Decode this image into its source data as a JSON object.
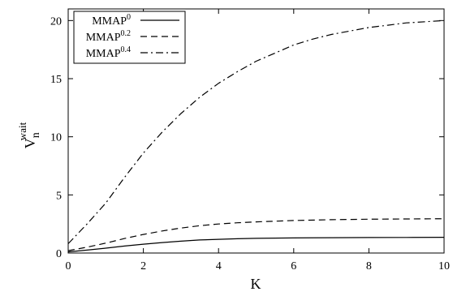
{
  "chart_data": {
    "type": "line",
    "xlabel": "K",
    "ylabel": {
      "base": "V",
      "sub": "n",
      "sup": "wait"
    },
    "xlim": [
      0,
      10
    ],
    "ylim": [
      0,
      21
    ],
    "xticks": [
      0,
      2,
      4,
      6,
      8,
      10
    ],
    "yticks": [
      0,
      5,
      10,
      15,
      20
    ],
    "grid": false,
    "legend_position": "top-left",
    "series": [
      {
        "name": "MMAP",
        "name_sup": "0",
        "style": "solid",
        "color": "#000000",
        "x": [
          0,
          0.5,
          1,
          1.5,
          2,
          2.5,
          3,
          3.5,
          4,
          4.5,
          5,
          6,
          7,
          8,
          9,
          10
        ],
        "y": [
          0.1,
          0.25,
          0.42,
          0.6,
          0.76,
          0.9,
          1.02,
          1.12,
          1.18,
          1.23,
          1.26,
          1.3,
          1.32,
          1.33,
          1.34,
          1.35
        ]
      },
      {
        "name": "MMAP",
        "name_sup": "0.2",
        "style": "dashed",
        "color": "#000000",
        "x": [
          0,
          0.5,
          1,
          1.5,
          2,
          2.5,
          3,
          3.5,
          4,
          4.5,
          5,
          6,
          7,
          8,
          9,
          10
        ],
        "y": [
          0.2,
          0.5,
          0.85,
          1.25,
          1.6,
          1.9,
          2.15,
          2.35,
          2.5,
          2.6,
          2.68,
          2.8,
          2.87,
          2.91,
          2.93,
          2.95
        ]
      },
      {
        "name": "MMAP",
        "name_sup": "0.4",
        "style": "dashdot",
        "color": "#000000",
        "x": [
          0,
          0.5,
          1,
          1.5,
          2,
          2.5,
          3,
          3.5,
          4,
          4.5,
          5,
          5.5,
          6,
          6.5,
          7,
          7.5,
          8,
          8.5,
          9,
          9.5,
          10
        ],
        "y": [
          0.8,
          2.5,
          4.3,
          6.5,
          8.6,
          10.4,
          12.0,
          13.4,
          14.6,
          15.6,
          16.5,
          17.2,
          17.9,
          18.4,
          18.8,
          19.1,
          19.4,
          19.6,
          19.8,
          19.9,
          20.0
        ]
      }
    ]
  }
}
